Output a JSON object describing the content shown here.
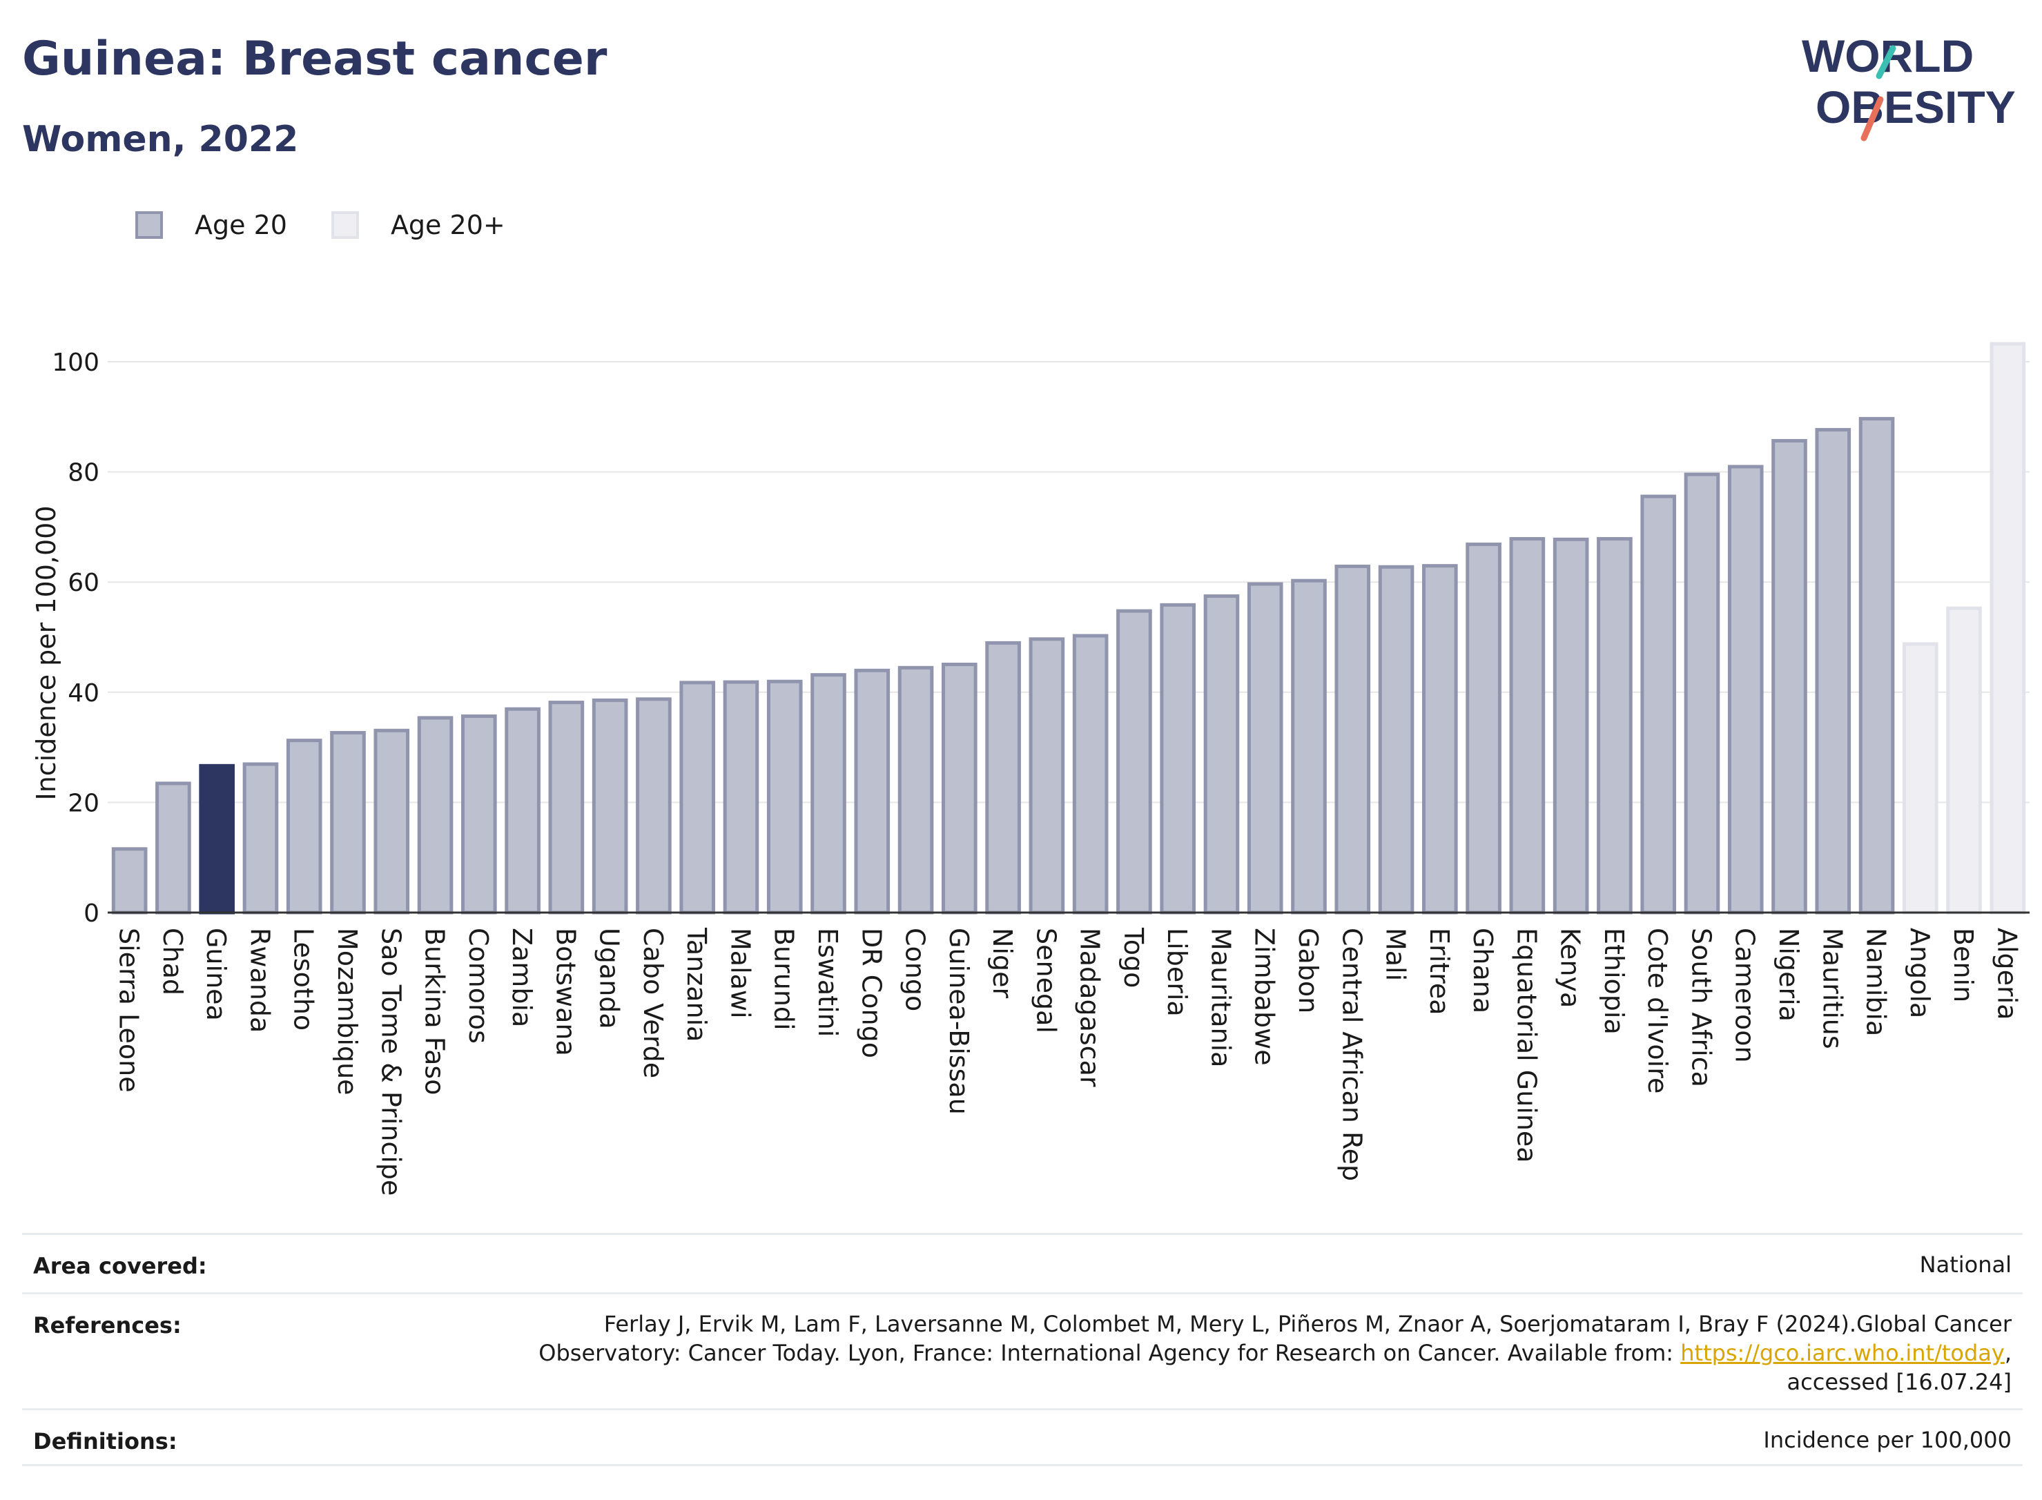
{
  "header": {
    "title": "Guinea: Breast cancer",
    "subtitle": "Women, 2022"
  },
  "logo": {
    "line1": "WORLD",
    "line2": "OBESITY",
    "icon": "world-obesity-logo"
  },
  "legend": {
    "age20": "Age 20",
    "age20plus": "Age 20+"
  },
  "colors": {
    "age20_fill": "#bcc0cf",
    "age20_stroke": "#9094ad",
    "age20plus_fill": "#eeeef3",
    "age20plus_stroke": "#e2e3ea",
    "highlight": "#2d3561",
    "link": "#d9a500"
  },
  "chart_data": {
    "type": "bar",
    "ylabel": "Incidence per 100,000",
    "xlabel": "",
    "ylim": [
      0,
      105
    ],
    "yticks": [
      0,
      20,
      40,
      60,
      80,
      100
    ],
    "grid": true,
    "highlight": "Guinea",
    "legend_position": "top-left",
    "categories": [
      "Sierra Leone",
      "Chad",
      "Guinea",
      "Rwanda",
      "Lesotho",
      "Mozambique",
      "Sao Tome & Principe",
      "Burkina Faso",
      "Comoros",
      "Zambia",
      "Botswana",
      "Uganda",
      "Cabo Verde",
      "Tanzania",
      "Malawi",
      "Burundi",
      "Eswatini",
      "DR Congo",
      "Congo",
      "Guinea-Bissau",
      "Niger",
      "Senegal",
      "Madagascar",
      "Togo",
      "Liberia",
      "Mauritania",
      "Zimbabwe",
      "Gabon",
      "Central African Rep",
      "Mali",
      "Eritrea",
      "Ghana",
      "Equatorial Guinea",
      "Kenya",
      "Ethiopia",
      "Cote d'Ivoire",
      "South Africa",
      "Cameroon",
      "Nigeria",
      "Mauritius",
      "Namibia",
      "Angola",
      "Benin",
      "Algeria"
    ],
    "values": [
      11.8,
      23.7,
      26.9,
      27.2,
      31.5,
      32.9,
      33.3,
      35.6,
      35.9,
      37.2,
      38.4,
      38.8,
      39.0,
      42.0,
      42.1,
      42.2,
      43.4,
      44.2,
      44.7,
      45.3,
      49.2,
      49.9,
      50.5,
      55.0,
      56.1,
      57.7,
      59.9,
      60.5,
      63.1,
      63.0,
      63.2,
      67.1,
      68.1,
      68.0,
      68.1,
      75.8,
      79.8,
      81.2,
      85.9,
      87.9,
      89.9,
      49.0,
      55.5,
      103.5
    ],
    "groups": [
      "Age 20",
      "Age 20",
      "Age 20",
      "Age 20",
      "Age 20",
      "Age 20",
      "Age 20",
      "Age 20",
      "Age 20",
      "Age 20",
      "Age 20",
      "Age 20",
      "Age 20",
      "Age 20",
      "Age 20",
      "Age 20",
      "Age 20",
      "Age 20",
      "Age 20",
      "Age 20",
      "Age 20",
      "Age 20",
      "Age 20",
      "Age 20",
      "Age 20",
      "Age 20",
      "Age 20",
      "Age 20",
      "Age 20",
      "Age 20",
      "Age 20",
      "Age 20",
      "Age 20",
      "Age 20",
      "Age 20",
      "Age 20",
      "Age 20",
      "Age 20",
      "Age 20",
      "Age 20",
      "Age 20",
      "Age 20+",
      "Age 20+",
      "Age 20+"
    ]
  },
  "info": {
    "area_label": "Area covered:",
    "area_value": "National",
    "references_label": "References:",
    "references_line1": "Ferlay J, Ervik M, Lam F, Laversanne M, Colombet M, Mery L, Piñeros M, Znaor A, Soerjomataram I, Bray F (2024).Global Cancer",
    "references_line2_prefix": "Observatory: Cancer Today. Lyon, France: International Agency for Research on Cancer. Available from: ",
    "references_link": "https://gco.iarc.who.int/today",
    "references_line2_suffix": ",",
    "references_line3": "accessed [16.07.24]",
    "definitions_label": "Definitions:",
    "definitions_value": "Incidence per 100,000"
  }
}
